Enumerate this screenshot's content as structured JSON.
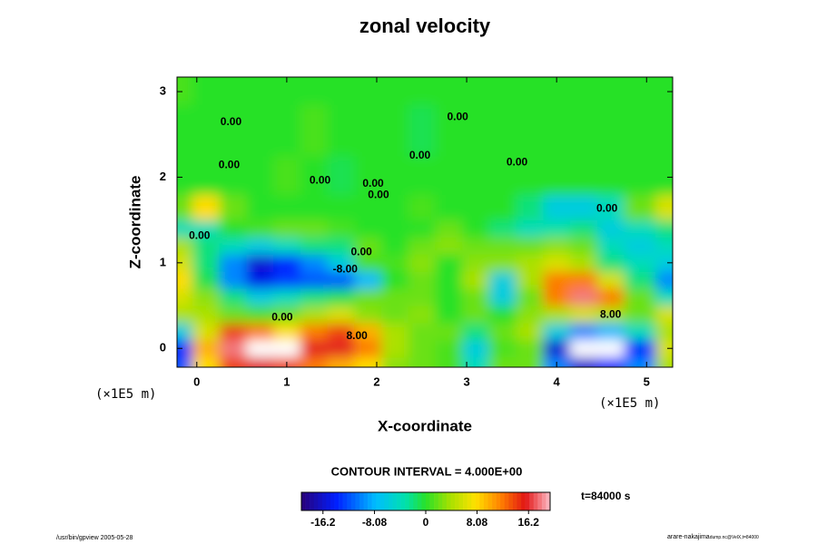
{
  "chart_data": {
    "type": "contour",
    "title": "zonal velocity",
    "x_label": "X-coordinate",
    "y_label": "Z-coordinate",
    "x_unit_label": "(×1E5 m)",
    "xlim": [
      -0.22,
      5.29
    ],
    "ylim": [
      -0.22,
      3.17
    ],
    "xticks": [
      0,
      1,
      2,
      3,
      4,
      5
    ],
    "yticks": [
      0,
      1,
      2,
      3
    ],
    "x": [
      -0.2,
      0.1,
      0.4,
      0.7,
      1.0,
      1.3,
      1.6,
      1.9,
      2.2,
      2.5,
      2.8,
      3.1,
      3.4,
      3.7,
      4.0,
      4.3,
      4.6,
      4.9,
      5.3
    ],
    "y": [
      -0.2,
      0,
      0.2,
      0.4,
      0.6,
      0.8,
      1.0,
      1.2,
      1.4,
      1.6,
      2.0,
      2.5,
      3.2
    ],
    "z": [
      [
        -12,
        8,
        14,
        16,
        14,
        12,
        10,
        8,
        3,
        2,
        1,
        -4,
        2,
        2,
        -10,
        -16,
        -14,
        -10,
        4
      ],
      [
        -14,
        10,
        18,
        24,
        20,
        16,
        16,
        12,
        4,
        2,
        1,
        -6,
        1,
        2,
        -16,
        -24,
        -24,
        -14,
        6
      ],
      [
        -6,
        6,
        14,
        12,
        8,
        12,
        14,
        10,
        4,
        2,
        2,
        -2,
        2,
        4,
        -6,
        -10,
        -8,
        -4,
        4
      ],
      [
        4,
        4,
        2,
        1,
        2,
        4,
        6,
        3,
        2,
        3,
        0,
        2,
        0,
        3,
        4,
        6,
        4,
        2,
        6
      ],
      [
        6,
        3,
        -2,
        -6,
        -4,
        -2,
        -1,
        2,
        2,
        2,
        0,
        2,
        -6,
        2,
        12,
        18,
        12,
        2,
        -4
      ],
      [
        8,
        -1,
        -10,
        -15,
        -13,
        -12,
        -12,
        -8,
        0,
        2,
        0,
        4,
        -6,
        4,
        12,
        12,
        6,
        -2,
        -10
      ],
      [
        6,
        -2,
        -10,
        -16,
        -14,
        -10,
        -6,
        1,
        1,
        3,
        0,
        3,
        3,
        4,
        6,
        4,
        -2,
        -4,
        -6
      ],
      [
        4,
        -2,
        -4,
        -6,
        -4,
        -2,
        -2,
        2,
        0,
        2,
        3,
        2,
        2,
        2,
        3,
        2,
        -4,
        -6,
        -4
      ],
      [
        -4,
        -4,
        0,
        1,
        2,
        2,
        1,
        0,
        0,
        0,
        2,
        0,
        -2,
        -4,
        -3,
        -2,
        -6,
        -4,
        -2
      ],
      [
        2,
        8,
        2,
        0,
        0,
        0,
        0,
        0,
        0,
        1,
        0,
        0,
        0,
        -2,
        -6,
        -6,
        -4,
        2,
        6
      ],
      [
        0,
        0,
        0,
        0,
        1,
        0,
        -1,
        0,
        0,
        0,
        0,
        0,
        0,
        0,
        0,
        0,
        0,
        0,
        0
      ],
      [
        0,
        0,
        0,
        0,
        0,
        1,
        0,
        0,
        0,
        -1,
        0,
        0,
        0,
        0,
        0,
        0,
        0,
        0,
        0
      ],
      [
        1,
        0,
        0,
        0,
        0,
        0,
        0,
        0,
        0,
        0,
        0,
        0,
        0,
        0,
        0,
        0,
        0,
        0,
        0
      ]
    ],
    "annotations": [
      {
        "text": "0.00",
        "x": 0.38,
        "y": 2.64
      },
      {
        "text": "0.00",
        "x": 2.9,
        "y": 2.7
      },
      {
        "text": "0.00",
        "x": 2.48,
        "y": 2.25
      },
      {
        "text": "0.00",
        "x": 0.36,
        "y": 2.14
      },
      {
        "text": "0.00",
        "x": 3.56,
        "y": 2.17
      },
      {
        "text": "0.00",
        "x": 1.37,
        "y": 1.96
      },
      {
        "text": "0.00",
        "x": 1.96,
        "y": 1.92
      },
      {
        "text": "0.00",
        "x": 2.02,
        "y": 1.79
      },
      {
        "text": "0.00",
        "x": 4.56,
        "y": 1.63
      },
      {
        "text": "0.00",
        "x": 0.03,
        "y": 1.31
      },
      {
        "text": "0.00",
        "x": 1.83,
        "y": 1.12
      },
      {
        "text": "-8.00",
        "x": 1.65,
        "y": 0.92
      },
      {
        "text": "0.00",
        "x": 0.95,
        "y": 0.36
      },
      {
        "text": "8.00",
        "x": 1.78,
        "y": 0.14
      },
      {
        "text": "8.00",
        "x": 4.6,
        "y": 0.39
      }
    ],
    "contour_interval": "CONTOUR INTERVAL = 4.000E+00",
    "time_label": "t=84000 s",
    "clim": [
      -19.6,
      19.6
    ],
    "cticks": [
      -16.2,
      -8.08,
      0,
      8.08,
      16.2
    ],
    "footer_left": "/usr/bin/gpview 2005-05-28",
    "footer_right": "arare-nakajima",
    "footer_right_sub": "dump.nc@VelX,t=84000"
  }
}
